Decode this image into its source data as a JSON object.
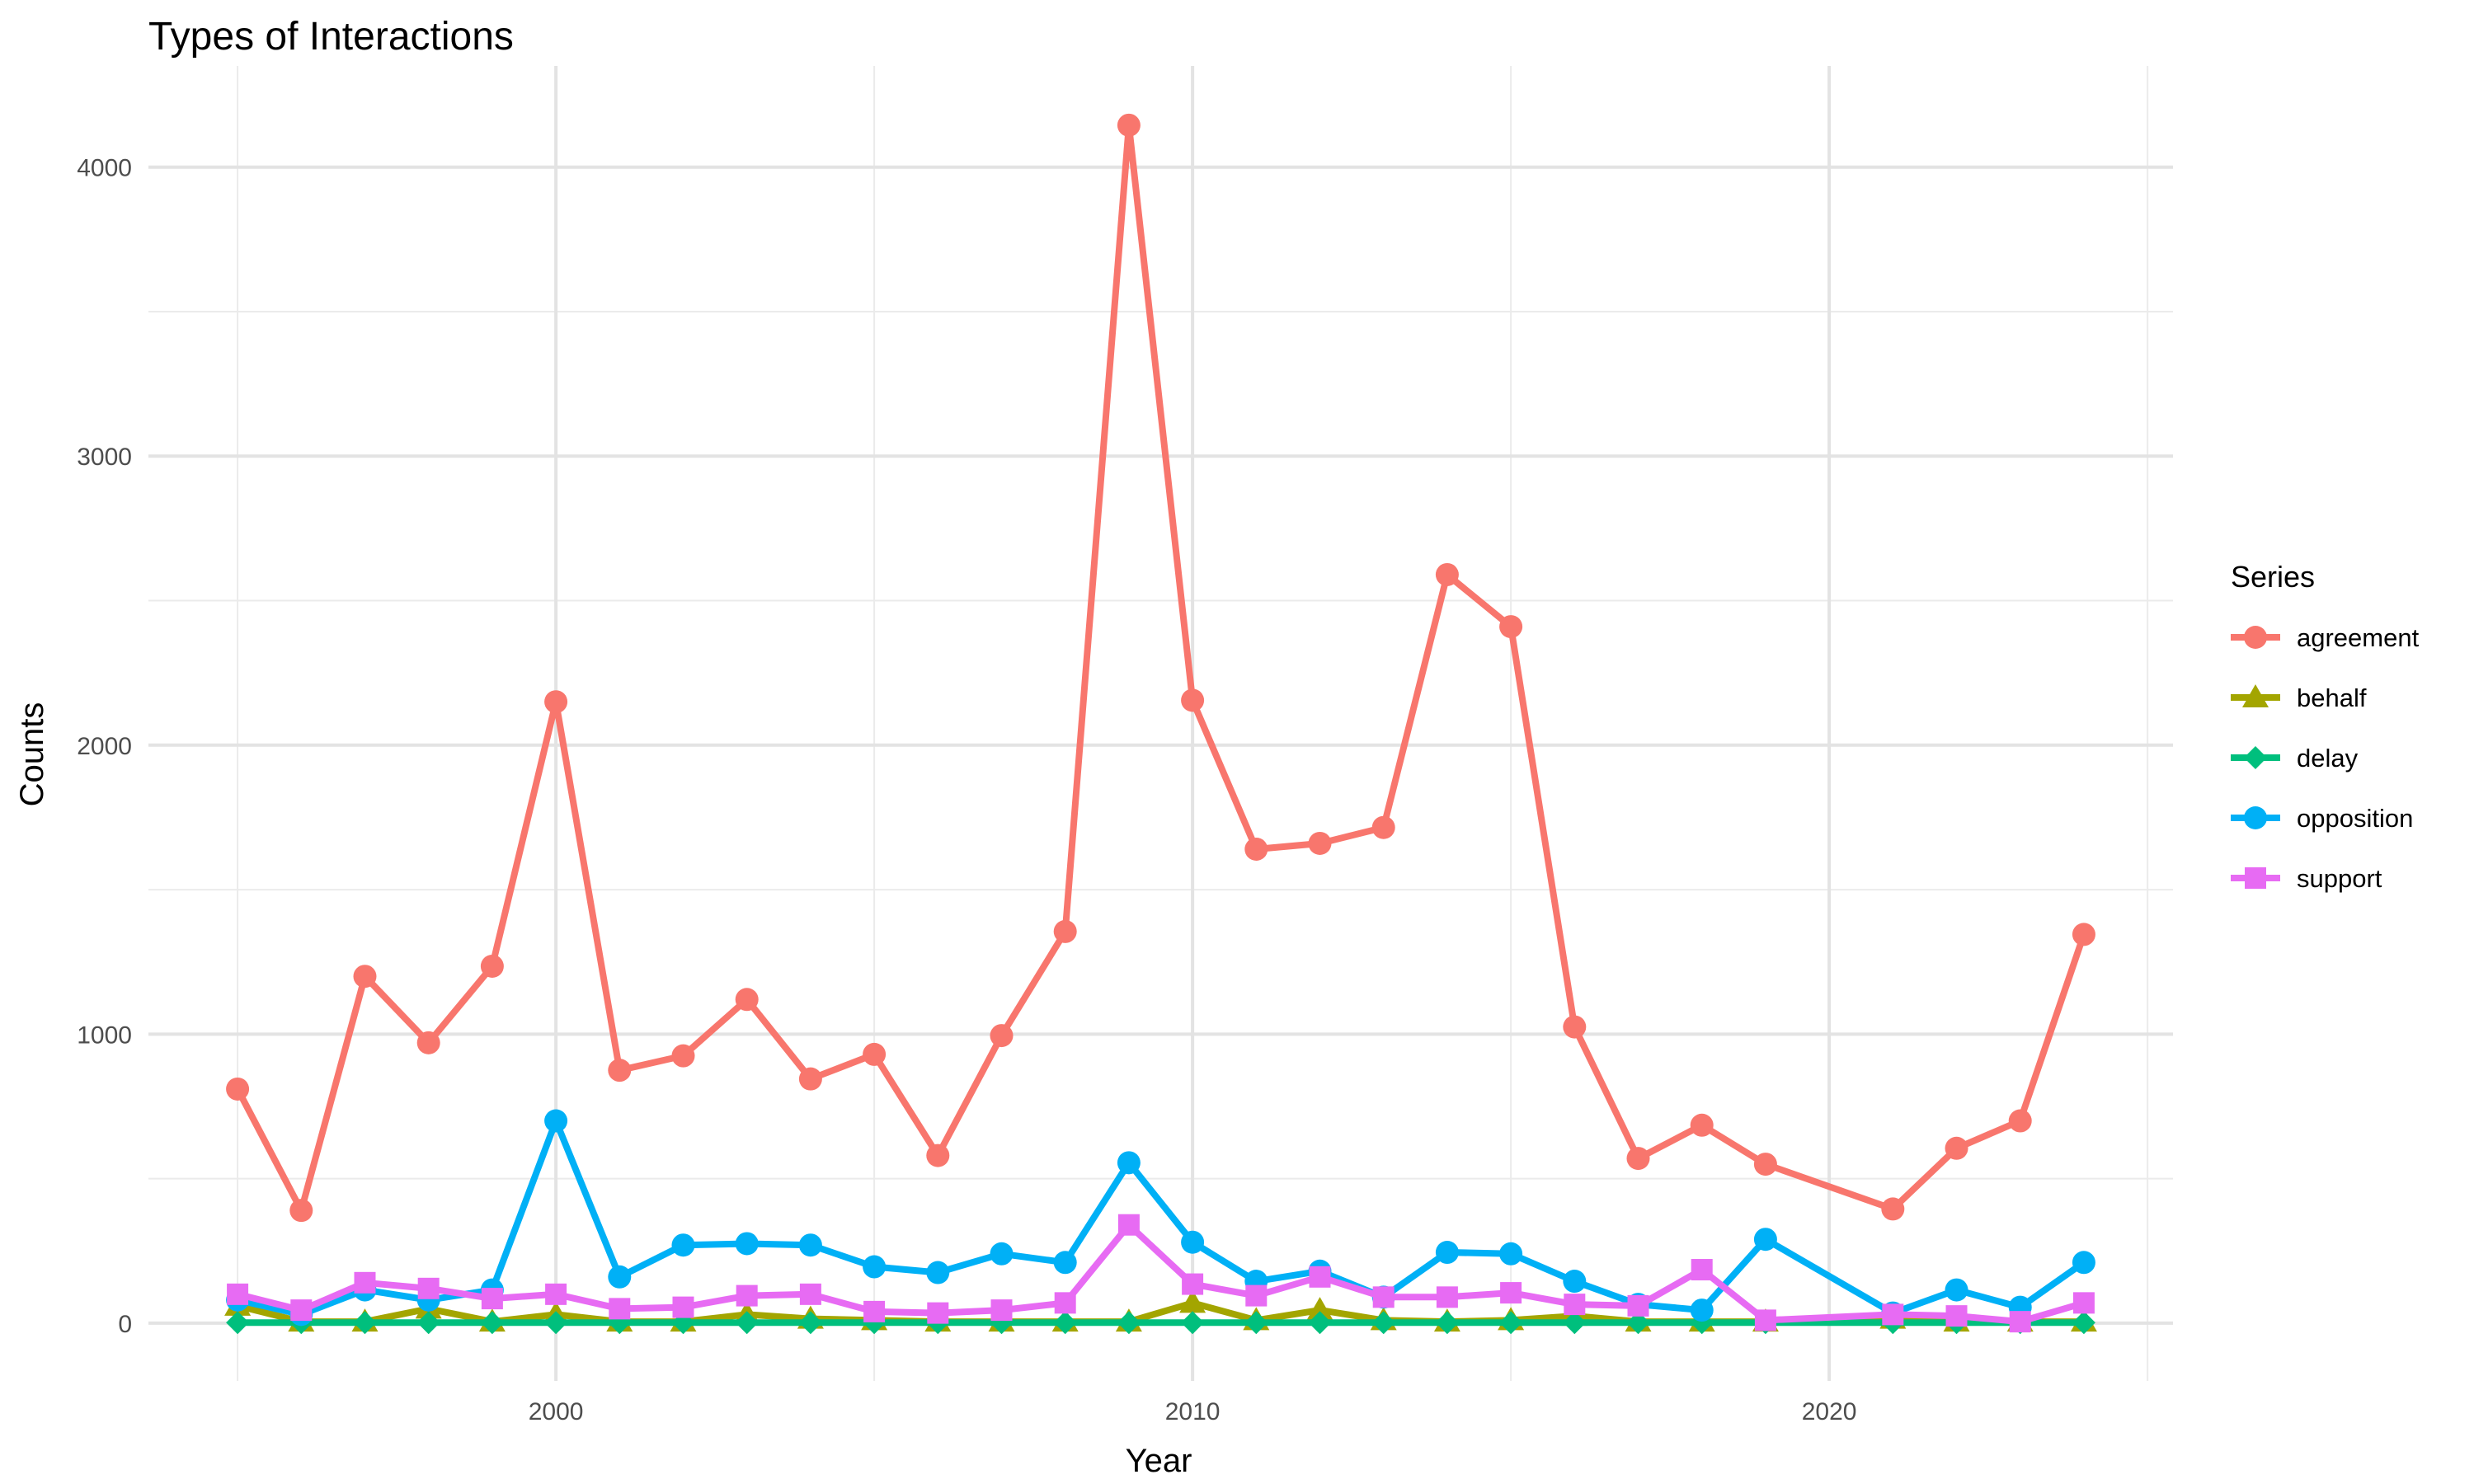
{
  "chart_data": {
    "type": "line",
    "title": "Types of Interactions",
    "xlabel": "Year",
    "ylabel": "Counts",
    "xlim": [
      1993.6,
      2025.4
    ],
    "ylim": [
      -200,
      4350
    ],
    "xticks": [
      2000,
      2010,
      2020
    ],
    "xminor": [
      1995,
      2005,
      2015,
      2025
    ],
    "yticks": [
      0,
      1000,
      2000,
      3000,
      4000
    ],
    "yminor": [
      500,
      1500,
      2500,
      3500
    ],
    "grid": true,
    "legend": {
      "title": "Series",
      "position": "right"
    },
    "series": [
      {
        "name": "agreement",
        "color": "#F8766D",
        "marker": "circle",
        "x": [
          1995,
          1996,
          1997,
          1998,
          1999,
          2000,
          2001,
          2002,
          2003,
          2004,
          2005,
          2006,
          2007,
          2008,
          2009,
          2010,
          2011,
          2012,
          2013,
          2014,
          2015,
          2016,
          2017,
          2018,
          2019,
          2021,
          2022,
          2023,
          2024
        ],
        "y": [
          810,
          390,
          1200,
          970,
          1235,
          2150,
          875,
          925,
          1120,
          845,
          930,
          580,
          995,
          1355,
          4145,
          2155,
          1640,
          1660,
          1715,
          2590,
          2410,
          1025,
          570,
          685,
          550,
          395,
          605,
          700,
          1345
        ]
      },
      {
        "name": "behalf",
        "color": "#A3A500",
        "marker": "triangle",
        "x": [
          1995,
          1996,
          1997,
          1998,
          1999,
          2000,
          2001,
          2002,
          2003,
          2004,
          2005,
          2006,
          2007,
          2008,
          2009,
          2010,
          2011,
          2012,
          2013,
          2014,
          2015,
          2016,
          2017,
          2018,
          2019,
          2021,
          2022,
          2023,
          2024
        ],
        "y": [
          60,
          5,
          5,
          50,
          5,
          30,
          5,
          5,
          30,
          15,
          10,
          5,
          5,
          5,
          5,
          70,
          10,
          45,
          10,
          5,
          10,
          25,
          5,
          5,
          5,
          15,
          5,
          5,
          5
        ]
      },
      {
        "name": "delay",
        "color": "#00BF7D",
        "marker": "diamond",
        "x": [
          1995,
          1996,
          1997,
          1998,
          1999,
          2000,
          2001,
          2002,
          2003,
          2004,
          2005,
          2006,
          2007,
          2008,
          2009,
          2010,
          2011,
          2012,
          2013,
          2014,
          2015,
          2016,
          2017,
          2018,
          2019,
          2021,
          2022,
          2023,
          2024
        ],
        "y": [
          2,
          2,
          2,
          2,
          2,
          2,
          2,
          2,
          2,
          2,
          2,
          2,
          2,
          2,
          2,
          2,
          2,
          2,
          2,
          2,
          2,
          2,
          2,
          2,
          2,
          2,
          2,
          2,
          2
        ]
      },
      {
        "name": "opposition",
        "color": "#00B0F6",
        "marker": "circle",
        "x": [
          1995,
          1996,
          1997,
          1998,
          1999,
          2000,
          2001,
          2002,
          2003,
          2004,
          2005,
          2006,
          2007,
          2008,
          2009,
          2010,
          2011,
          2012,
          2013,
          2014,
          2015,
          2016,
          2017,
          2018,
          2019,
          2021,
          2022,
          2023,
          2024
        ],
        "y": [
          80,
          30,
          115,
          80,
          115,
          700,
          160,
          270,
          275,
          270,
          195,
          175,
          240,
          210,
          555,
          280,
          145,
          180,
          90,
          245,
          240,
          145,
          65,
          45,
          290,
          35,
          115,
          55,
          210
        ]
      },
      {
        "name": "support",
        "color": "#E76BF3",
        "marker": "square",
        "x": [
          1995,
          1996,
          1997,
          1998,
          1999,
          2000,
          2001,
          2002,
          2003,
          2004,
          2005,
          2006,
          2007,
          2008,
          2009,
          2010,
          2011,
          2012,
          2013,
          2014,
          2015,
          2016,
          2017,
          2018,
          2019,
          2021,
          2022,
          2023,
          2024
        ],
        "y": [
          100,
          45,
          140,
          120,
          85,
          100,
          50,
          55,
          95,
          100,
          40,
          35,
          45,
          70,
          340,
          135,
          95,
          160,
          90,
          90,
          105,
          65,
          60,
          185,
          10,
          30,
          25,
          5,
          70
        ]
      }
    ]
  }
}
